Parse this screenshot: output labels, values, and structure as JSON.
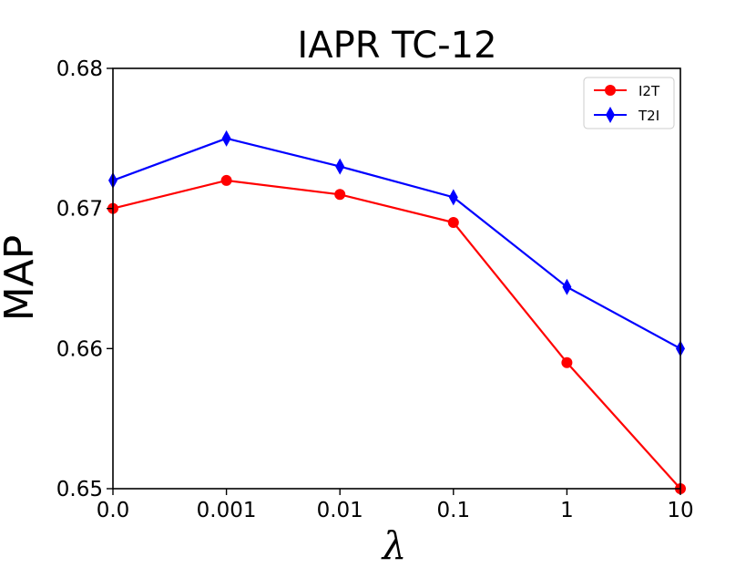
{
  "chart_data": {
    "type": "line",
    "title": "IAPR TC-12",
    "xlabel": "λ",
    "ylabel": "MAP",
    "categories": [
      "0.0",
      "0.001",
      "0.01",
      "0.1",
      "1",
      "10"
    ],
    "ylim": [
      0.65,
      0.68
    ],
    "yticks": [
      0.65,
      0.66,
      0.67,
      0.68
    ],
    "ytick_labels": [
      "0.65",
      "0.66",
      "0.67",
      "0.68"
    ],
    "legend_position": "top-right",
    "grid": false,
    "series": [
      {
        "name": "I2T",
        "color": "#ff0000",
        "marker": "circle",
        "values": [
          0.67,
          0.672,
          0.671,
          0.669,
          0.659,
          0.65
        ]
      },
      {
        "name": "T2I",
        "color": "#0000ff",
        "marker": "diamond",
        "values": [
          0.672,
          0.675,
          0.673,
          0.6708,
          0.6644,
          0.66
        ]
      }
    ]
  }
}
